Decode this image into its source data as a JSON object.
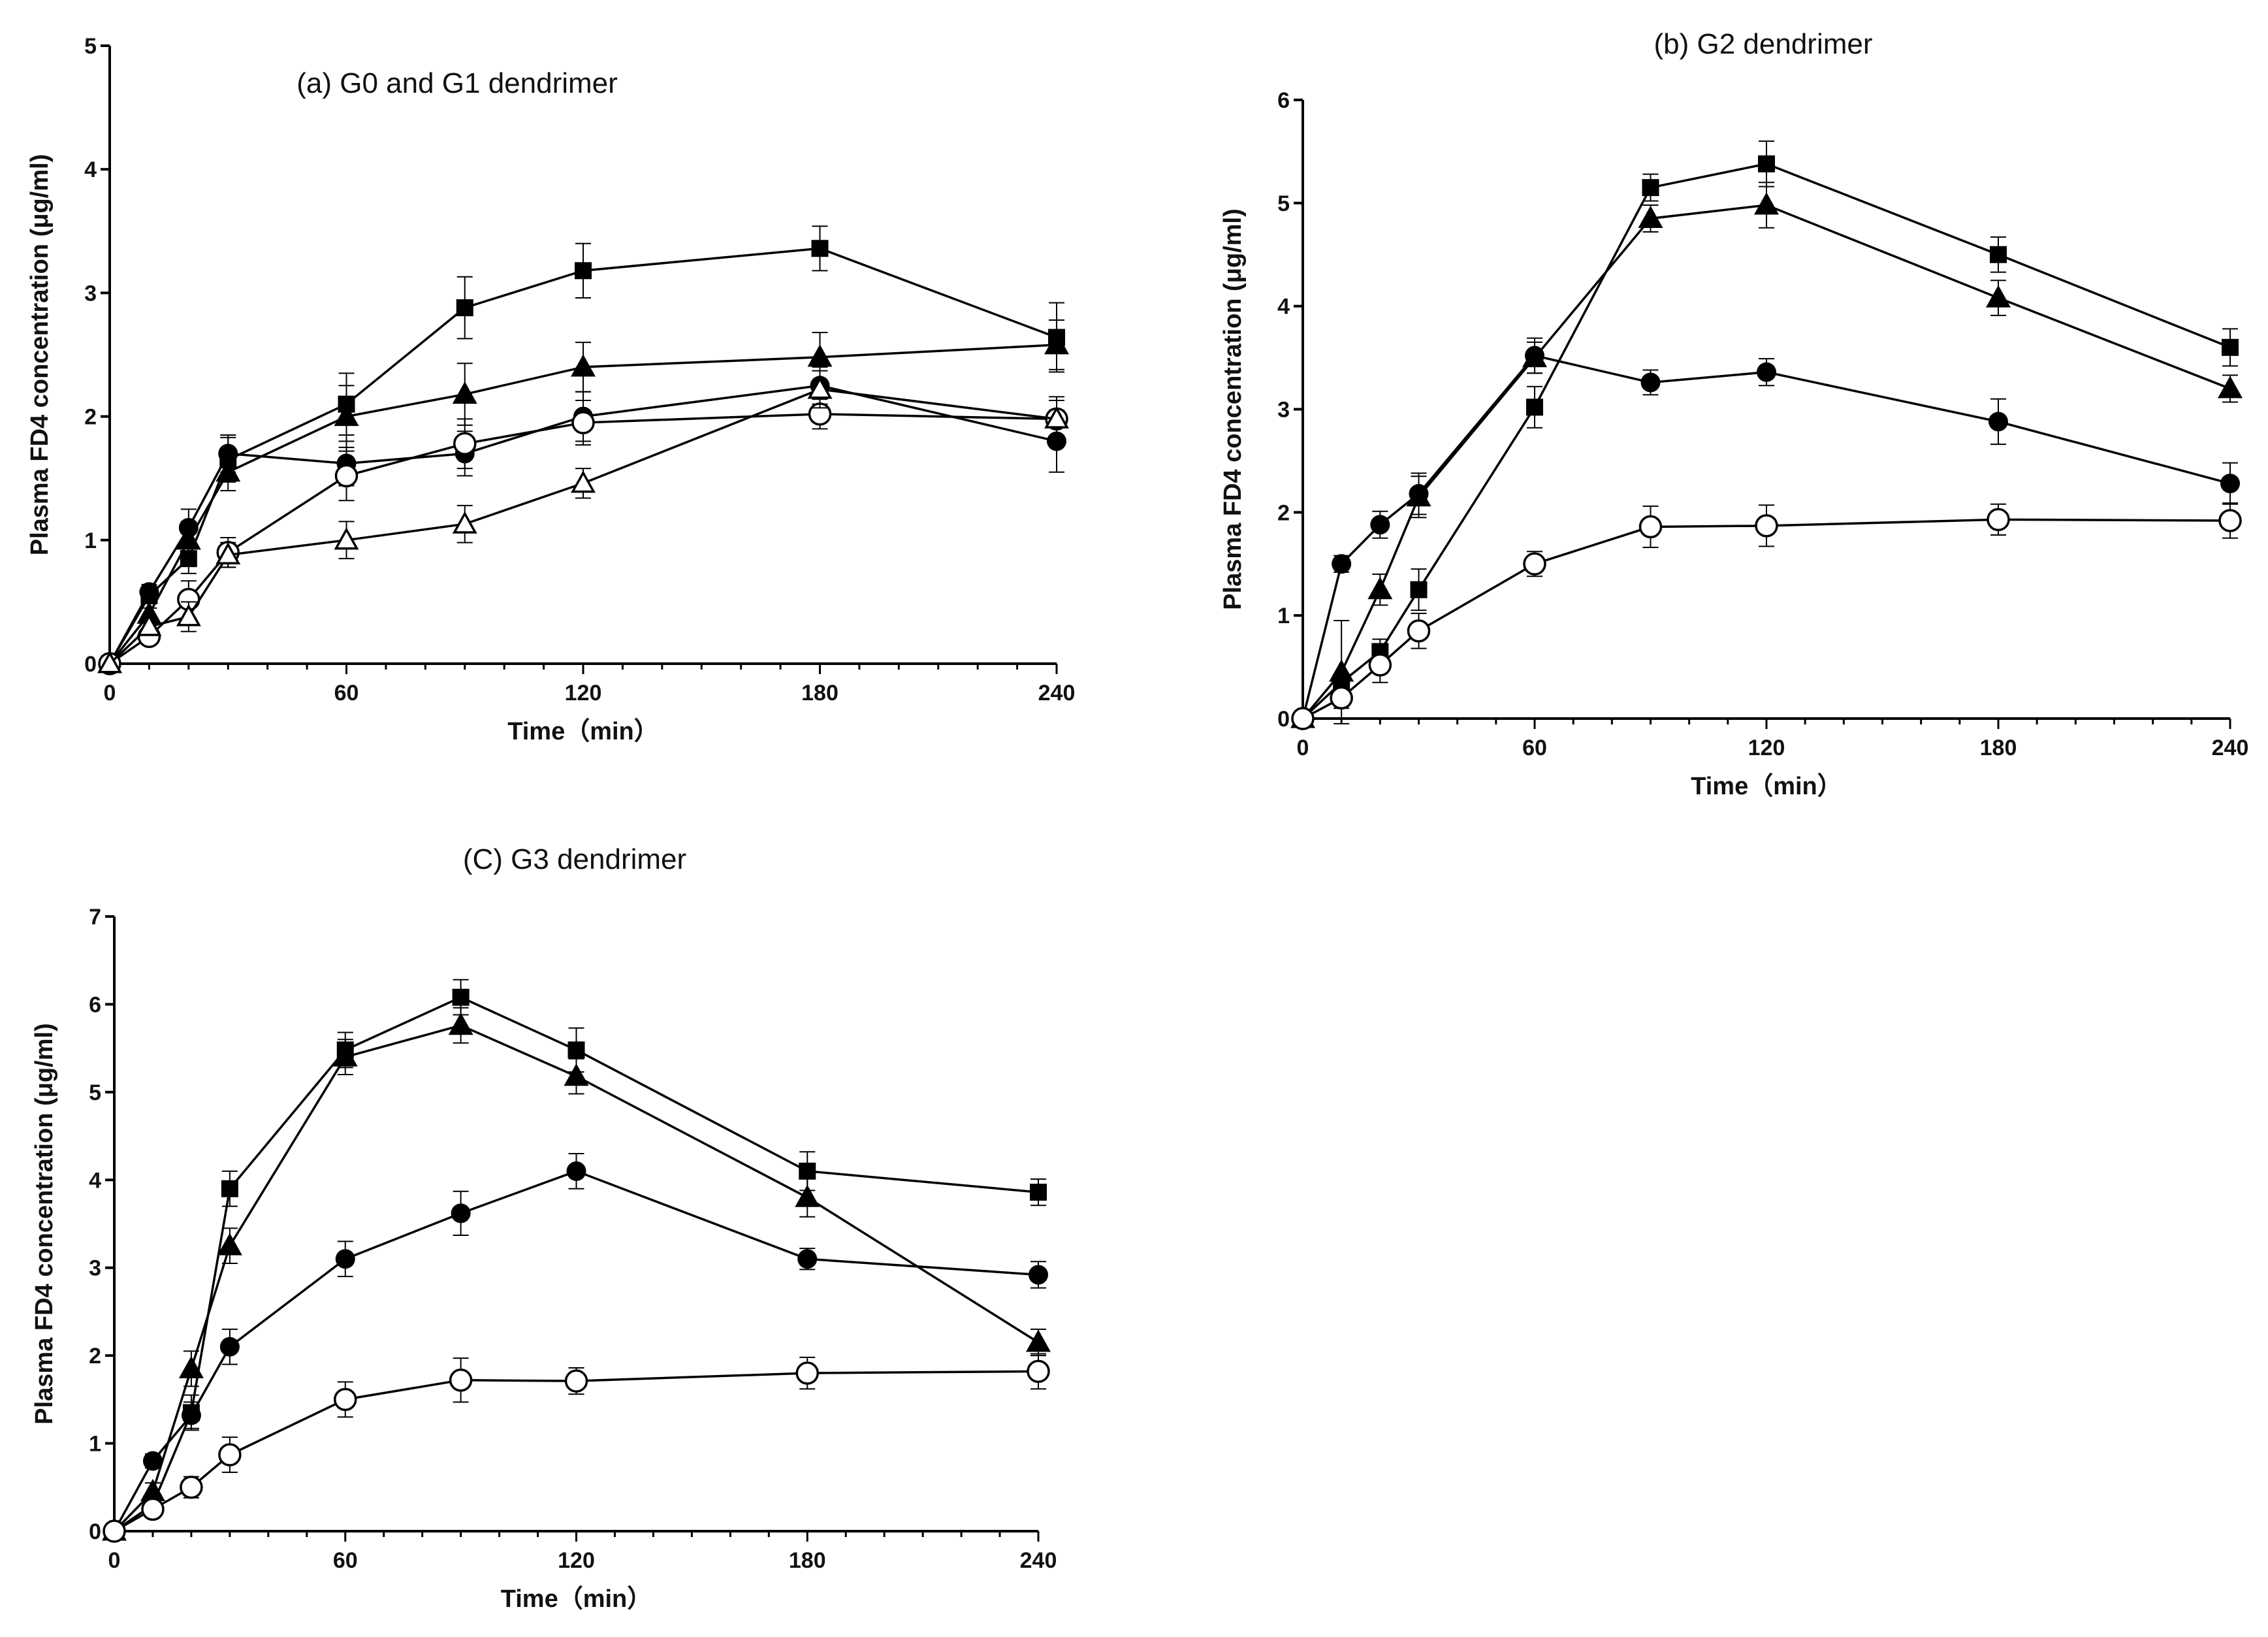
{
  "chart_data": [
    {
      "type": "line",
      "title": "(a) G0 and G1 dendrimer",
      "xlabel": "Time（min）",
      "ylabel": "Plasma FD4 concentration (μg/ml)",
      "xlim": [
        0,
        240
      ],
      "ylim": [
        0,
        5
      ],
      "xticks": [
        0,
        60,
        120,
        180,
        240
      ],
      "yticks": [
        0,
        1,
        2,
        3,
        4,
        5
      ],
      "grid": false,
      "series": [
        {
          "name": "square",
          "marker": "square-filled",
          "x": [
            0,
            10,
            20,
            30,
            60,
            90,
            120,
            180,
            240
          ],
          "y": [
            0,
            0.55,
            0.85,
            1.65,
            2.1,
            2.88,
            3.18,
            3.36,
            2.64
          ],
          "err": [
            0,
            0.06,
            0.12,
            0.18,
            0.25,
            0.25,
            0.22,
            0.18,
            0.28
          ]
        },
        {
          "name": "triangle",
          "marker": "triangle-filled",
          "x": [
            0,
            10,
            20,
            30,
            60,
            90,
            120,
            180,
            240
          ],
          "y": [
            0,
            0.4,
            1.0,
            1.55,
            2.0,
            2.18,
            2.4,
            2.48,
            2.58
          ],
          "err": [
            0,
            0.05,
            0.15,
            0.15,
            0.25,
            0.25,
            0.2,
            0.2,
            0.2
          ]
        },
        {
          "name": "circle-filled",
          "marker": "circle-filled",
          "x": [
            0,
            10,
            20,
            30,
            60,
            90,
            120,
            180,
            240
          ],
          "y": [
            0,
            0.58,
            1.1,
            1.7,
            1.62,
            1.7,
            2.0,
            2.25,
            1.8
          ],
          "err": [
            0,
            0.06,
            0.15,
            0.15,
            0.18,
            0.18,
            0.2,
            0.15,
            0.25
          ]
        },
        {
          "name": "circle-open",
          "marker": "circle-open",
          "x": [
            0,
            10,
            20,
            30,
            60,
            90,
            120,
            180,
            240
          ],
          "y": [
            0,
            0.22,
            0.52,
            0.9,
            1.52,
            1.78,
            1.95,
            2.02,
            1.98
          ],
          "err": [
            0,
            0.05,
            0.15,
            0.12,
            0.2,
            0.2,
            0.18,
            0.12,
            0.18
          ]
        },
        {
          "name": "triangle-open",
          "marker": "triangle-open",
          "x": [
            0,
            10,
            20,
            30,
            60,
            90,
            120,
            180,
            240
          ],
          "y": [
            0,
            0.3,
            0.38,
            0.88,
            1.0,
            1.13,
            1.46,
            2.22,
            1.98
          ],
          "err": [
            0,
            0.05,
            0.12,
            0.1,
            0.15,
            0.15,
            0.12,
            0.15,
            0.15
          ]
        }
      ]
    },
    {
      "type": "line",
      "title": "(b)  G2 dendrimer",
      "xlabel": "Time（min）",
      "ylabel": "Plasma FD4 concentration (μg/ml)",
      "xlim": [
        0,
        240
      ],
      "ylim": [
        0,
        6
      ],
      "xticks": [
        0,
        60,
        120,
        180,
        240
      ],
      "yticks": [
        0,
        1,
        2,
        3,
        4,
        5,
        6
      ],
      "grid": false,
      "series": [
        {
          "name": "square",
          "marker": "square-filled",
          "x": [
            0,
            10,
            20,
            30,
            60,
            90,
            120,
            180,
            240
          ],
          "y": [
            0,
            0.35,
            0.65,
            1.25,
            3.02,
            5.15,
            5.38,
            4.5,
            3.6
          ],
          "err": [
            0,
            0.08,
            0.12,
            0.2,
            0.2,
            0.13,
            0.22,
            0.17,
            0.18
          ]
        },
        {
          "name": "triangle",
          "marker": "triangle-filled",
          "x": [
            0,
            10,
            20,
            30,
            60,
            90,
            120,
            180,
            240
          ],
          "y": [
            0,
            0.45,
            1.25,
            2.15,
            3.5,
            4.85,
            4.98,
            4.08,
            3.2
          ],
          "err": [
            0,
            0.5,
            0.15,
            0.2,
            0.15,
            0.13,
            0.22,
            0.17,
            0.13
          ]
        },
        {
          "name": "circle-filled",
          "marker": "circle-filled",
          "x": [
            0,
            10,
            20,
            30,
            60,
            90,
            120,
            180,
            240
          ],
          "y": [
            0,
            1.5,
            1.88,
            2.18,
            3.52,
            3.26,
            3.36,
            2.88,
            2.28
          ],
          "err": [
            0,
            0.08,
            0.13,
            0.2,
            0.17,
            0.12,
            0.13,
            0.22,
            0.2
          ]
        },
        {
          "name": "circle-open",
          "marker": "circle-open",
          "x": [
            0,
            10,
            20,
            30,
            60,
            90,
            120,
            180,
            240
          ],
          "y": [
            0,
            0.2,
            0.52,
            0.85,
            1.5,
            1.86,
            1.87,
            1.93,
            1.92
          ],
          "err": [
            0,
            0.1,
            0.17,
            0.17,
            0.12,
            0.2,
            0.2,
            0.15,
            0.17
          ]
        }
      ]
    },
    {
      "type": "line",
      "title": "(C)  G3 dendrimer",
      "xlabel": "Time（min）",
      "ylabel": "Plasma FD4 concentration (μg/ml)",
      "xlim": [
        0,
        240
      ],
      "ylim": [
        0,
        7
      ],
      "xticks": [
        0,
        60,
        120,
        180,
        240
      ],
      "yticks": [
        0,
        1,
        2,
        3,
        4,
        5,
        6,
        7
      ],
      "grid": false,
      "series": [
        {
          "name": "square",
          "marker": "square-filled",
          "x": [
            0,
            10,
            20,
            30,
            60,
            90,
            120,
            180,
            240
          ],
          "y": [
            0,
            0.3,
            1.35,
            3.9,
            5.48,
            6.08,
            5.48,
            4.1,
            3.86
          ],
          "err": [
            0,
            0.1,
            0.2,
            0.2,
            0.2,
            0.2,
            0.25,
            0.22,
            0.15
          ]
        },
        {
          "name": "triangle",
          "marker": "triangle-filled",
          "x": [
            0,
            10,
            20,
            30,
            60,
            90,
            120,
            180,
            240
          ],
          "y": [
            0,
            0.45,
            1.85,
            3.25,
            5.4,
            5.76,
            5.18,
            3.8,
            2.15
          ],
          "err": [
            0,
            0.1,
            0.2,
            0.2,
            0.2,
            0.2,
            0.2,
            0.22,
            0.15
          ]
        },
        {
          "name": "circle-filled",
          "marker": "circle-filled",
          "x": [
            0,
            10,
            20,
            30,
            60,
            90,
            120,
            180,
            240
          ],
          "y": [
            0,
            0.8,
            1.32,
            2.1,
            3.1,
            3.62,
            4.1,
            3.1,
            2.92
          ],
          "err": [
            0,
            0.08,
            0.15,
            0.2,
            0.2,
            0.25,
            0.2,
            0.12,
            0.15
          ]
        },
        {
          "name": "circle-open",
          "marker": "circle-open",
          "x": [
            0,
            10,
            20,
            30,
            60,
            90,
            120,
            180,
            240
          ],
          "y": [
            0,
            0.25,
            0.5,
            0.87,
            1.5,
            1.72,
            1.71,
            1.8,
            1.82
          ],
          "err": [
            0,
            0.08,
            0.12,
            0.2,
            0.2,
            0.25,
            0.15,
            0.18,
            0.2
          ]
        }
      ]
    }
  ]
}
